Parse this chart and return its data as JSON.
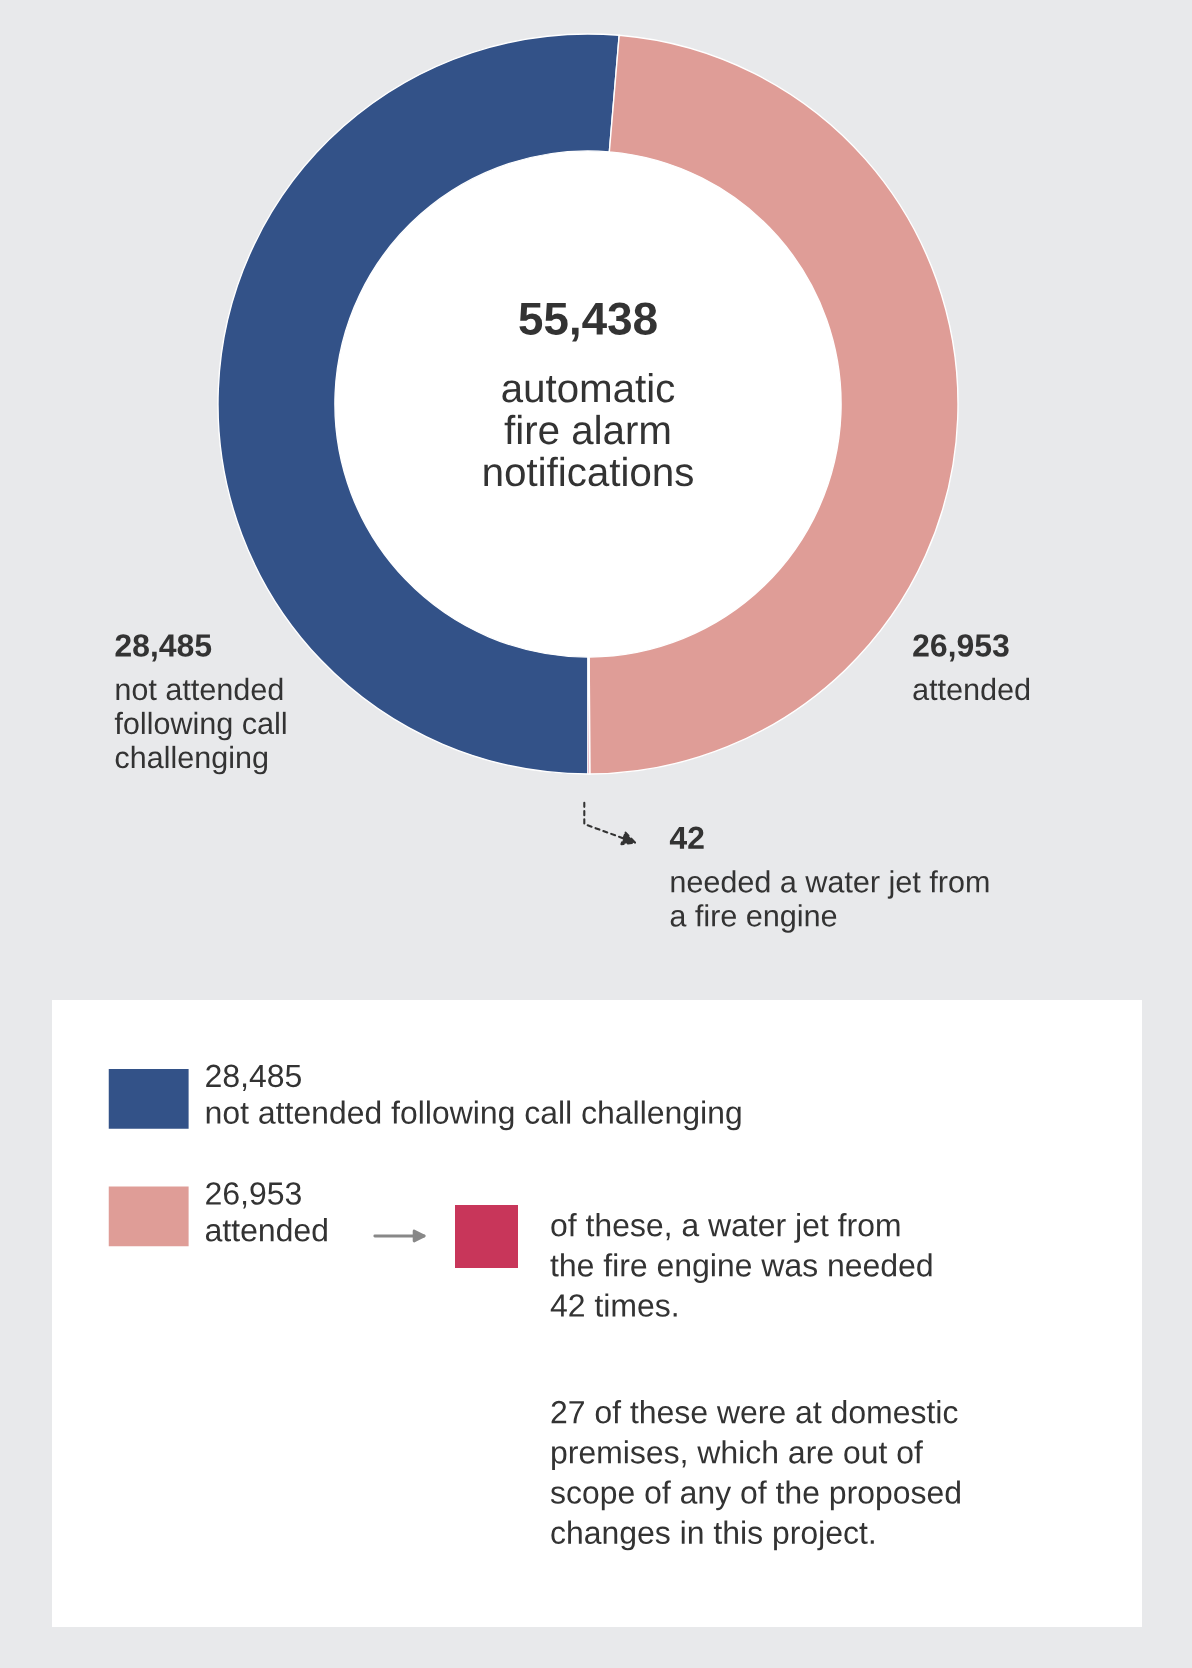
{
  "chart_data": {
    "type": "donut",
    "title": "55,438",
    "subtitle": "automatic fire alarm notifications",
    "categories": [
      "not attended following call challenging",
      "attended",
      "needed a water jet from a fire engine"
    ],
    "values": [
      28485,
      26953,
      42
    ],
    "value_labels": [
      "28,485",
      "26,953",
      "42"
    ],
    "colors": [
      "#335288",
      "#df9d97",
      "#c8365a"
    ],
    "legend": "bottom",
    "annotations": [
      "of these, a water jet from the fire engine was needed 42 times.",
      "27 of these were at domestic premises, which are out of scope of any of the proposed changes in this project."
    ]
  }
}
